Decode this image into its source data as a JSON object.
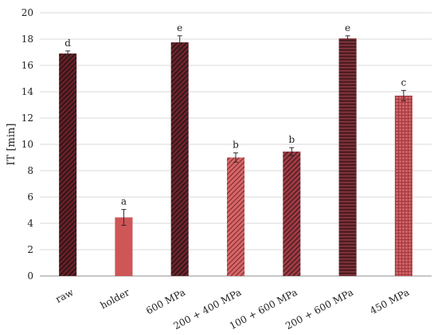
{
  "chart_data": {
    "type": "bar",
    "ylabel": "IT [min]",
    "ylim": [
      0,
      20
    ],
    "yticks": [
      0,
      2,
      4,
      6,
      8,
      10,
      12,
      14,
      16,
      18,
      20
    ],
    "grid": true,
    "categories": [
      "raw",
      "holder",
      "600 MPa",
      "200 + 400 MPa",
      "100 + 600 MPa",
      "200 + 600 MPa",
      "450 MPa"
    ],
    "values": [
      16.9,
      4.45,
      17.75,
      9.0,
      9.45,
      18.05,
      13.7
    ],
    "errors": [
      0.2,
      0.6,
      0.5,
      0.35,
      0.3,
      0.2,
      0.4
    ],
    "labels": [
      "d",
      "a",
      "e",
      "b",
      "b",
      "e",
      "c"
    ],
    "bar_styles": [
      {
        "fill": "dark-diagonal",
        "colors": [
          "#6b1f25",
          "#1f1418"
        ]
      },
      {
        "fill": "solid",
        "colors": [
          "#cf5656"
        ]
      },
      {
        "fill": "dark-diagonal-alt",
        "colors": [
          "#70232a",
          "#221519"
        ]
      },
      {
        "fill": "light-diagonal",
        "colors": [
          "#d86666",
          "#7a2a30"
        ]
      },
      {
        "fill": "medium-diagonal",
        "colors": [
          "#a33b43",
          "#4a1e24"
        ]
      },
      {
        "fill": "horizontal-lines",
        "colors": [
          "#4e1d22",
          "#8e3840"
        ]
      },
      {
        "fill": "grid-texture",
        "colors": [
          "#d26063",
          "#9c3a40"
        ]
      }
    ]
  }
}
